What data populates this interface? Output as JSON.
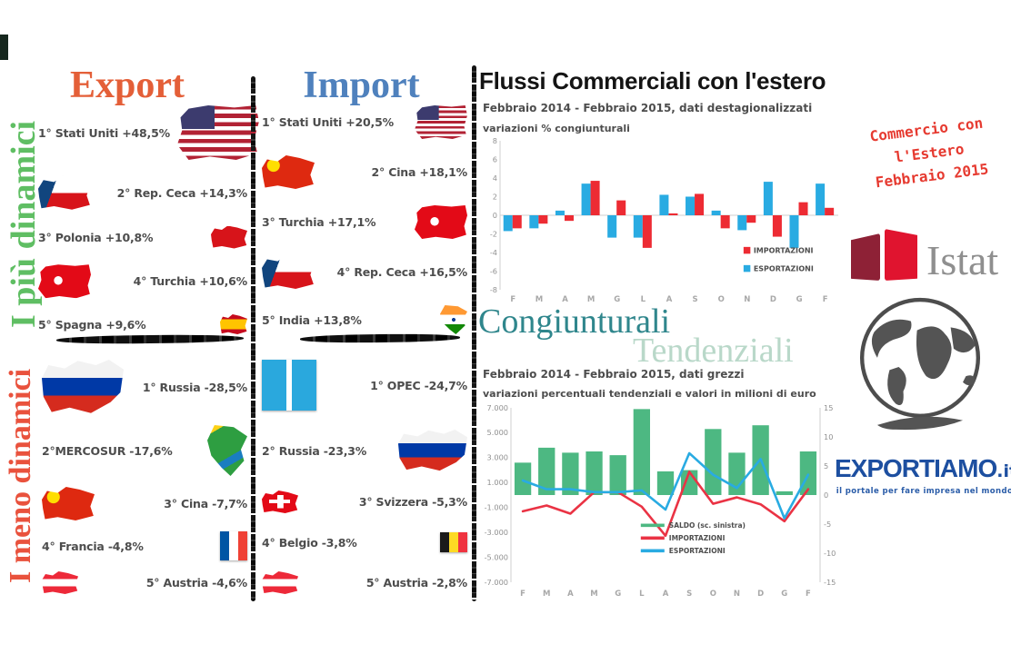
{
  "export_col": {
    "title": "Export",
    "top": {
      "label": "I più dinamici",
      "color": "#5fbe63",
      "items": [
        {
          "label": "1° Stati Uniti +48,5%",
          "flag": "usa"
        },
        {
          "label": "2° Rep. Ceca +14,3%",
          "flag": "czech"
        },
        {
          "label": "3° Polonia +10,8%",
          "flag": "poland"
        },
        {
          "label": "4° Turchia +10,6%",
          "flag": "turkey"
        },
        {
          "label": "5° Spagna +9,6%",
          "flag": "spain"
        }
      ]
    },
    "bottom": {
      "label": "I meno dinamici",
      "color": "#e9523d",
      "items": [
        {
          "label": "1° Russia -28,5%",
          "flag": "russia"
        },
        {
          "label": "2°MERCOSUR -17,6%",
          "flag": "mercosur"
        },
        {
          "label": "3° Cina -7,7%",
          "flag": "china"
        },
        {
          "label": "4° Francia -4,8%",
          "flag": "france"
        },
        {
          "label": "5° Austria -4,6%",
          "flag": "austria"
        }
      ]
    }
  },
  "import_col": {
    "title": "Import",
    "top": {
      "items": [
        {
          "label": "1° Stati Uniti +20,5%",
          "flag": "usa"
        },
        {
          "label": "2° Cina +18,1%",
          "flag": "china"
        },
        {
          "label": "3° Turchia +17,1%",
          "flag": "turkey"
        },
        {
          "label": "4° Rep. Ceca +16,5%",
          "flag": "czech"
        },
        {
          "label": "5° India +13,8%",
          "flag": "india"
        }
      ]
    },
    "bottom": {
      "items": [
        {
          "label": "1° OPEC -24,7%",
          "flag": "opec"
        },
        {
          "label": "2° Russia -23,3%",
          "flag": "russia"
        },
        {
          "label": "3° Svizzera -5,3%",
          "flag": "switzerland"
        },
        {
          "label": "4° Belgio -3,8%",
          "flag": "belgium"
        },
        {
          "label": "5° Austria -2,8%",
          "flag": "austria"
        }
      ]
    }
  },
  "charts": {
    "title": "Flussi Commerciali con l'estero",
    "subtitle1": "Febbraio 2014 - Febbraio 2015, dati destagionalizzati",
    "note1": "variazioni % congiunturali",
    "word_congiunturali": "Congiunturali",
    "word_tendenziali": "Tendenziali",
    "subtitle2": "Febbraio 2014 - Febbraio 2015, dati grezzi",
    "note2": "variazioni percentuali tendenziali e valori in milioni di euro"
  },
  "chart_data": [
    {
      "type": "bar",
      "title": "variazioni % congiunturali",
      "categories": [
        "F",
        "M",
        "A",
        "M",
        "G",
        "L",
        "A",
        "S",
        "O",
        "N",
        "D",
        "G",
        "F"
      ],
      "series": [
        {
          "name": "ESPORTAZIONI",
          "color": "#29abe2",
          "values": [
            -1.7,
            -1.4,
            0.5,
            3.4,
            -2.4,
            -2.4,
            2.2,
            2.0,
            0.5,
            -1.6,
            3.6,
            -3.5,
            3.4
          ]
        },
        {
          "name": "IMPORTAZIONI",
          "color": "#ed2b33",
          "values": [
            -1.4,
            -0.9,
            -0.6,
            3.7,
            1.6,
            -3.5,
            0.2,
            2.3,
            -1.4,
            -0.8,
            -2.3,
            1.4,
            0.8
          ]
        }
      ],
      "legend": [
        {
          "name": "IMPORTAZIONI",
          "color": "#ed2b33"
        },
        {
          "name": "ESPORTAZIONI",
          "color": "#29abe2"
        }
      ],
      "ylim": [
        -8,
        8
      ],
      "ytick_step": 2,
      "grid": false,
      "legend_position": "inside-right"
    },
    {
      "type": "bar+line",
      "title": "variazioni percentuali tendenziali e valori in milioni di euro",
      "categories": [
        "F",
        "M",
        "A",
        "M",
        "G",
        "L",
        "A",
        "S",
        "O",
        "N",
        "D",
        "G",
        "F"
      ],
      "bars": {
        "name": "SALDO (sc. sinistra)",
        "color": "#4db882",
        "axis": "left",
        "values": [
          2600,
          3800,
          3400,
          3500,
          3200,
          6900,
          1900,
          2000,
          5300,
          3400,
          5600,
          300,
          3500
        ]
      },
      "lines": [
        {
          "name": "IMPORTAZIONI",
          "color": "#ea3344",
          "axis": "right",
          "values": [
            -2.8,
            -1.8,
            -3.2,
            0.5,
            0.5,
            -2.0,
            -7.0,
            4.0,
            -1.5,
            -0.4,
            -1.6,
            -4.5,
            1.0
          ]
        },
        {
          "name": "ESPORTAZIONI",
          "color": "#29abe2",
          "axis": "right",
          "values": [
            2.5,
            1.0,
            1.0,
            0.5,
            0.5,
            0.8,
            -2.5,
            7.2,
            3.5,
            1.2,
            6.2,
            -4.0,
            3.5
          ]
        }
      ],
      "legend": [
        {
          "name": "SALDO (sc. sinistra)",
          "color": "#4db882"
        },
        {
          "name": "IMPORTAZIONI",
          "color": "#ea3344"
        },
        {
          "name": "ESPORTAZIONI",
          "color": "#29abe2"
        }
      ],
      "left_ylim": [
        -7000,
        7000
      ],
      "right_ylim": [
        -15,
        15
      ],
      "left_ticks": [
        "7.000",
        "5.000",
        "3.000",
        "1.000",
        "-1.000",
        "-3.000",
        "-5.000",
        "-7.000"
      ],
      "left_tick_values": [
        7000,
        5000,
        3000,
        1000,
        -1000,
        -3000,
        -5000,
        -7000
      ],
      "right_ticks": [
        "15",
        "10",
        "5",
        "0",
        "-5",
        "-10",
        "-15"
      ],
      "right_tick_values": [
        15,
        10,
        5,
        0,
        -5,
        -10,
        -15
      ],
      "grid": false,
      "legend_position": "inside-bottom-right"
    }
  ],
  "sidebar": {
    "stamp_lines": [
      "Commercio con",
      "l'Estero",
      "Febbraio 2015"
    ],
    "stamp_color": "#e63a30",
    "istat_label": "Istat",
    "brand": {
      "name": "EXPORTIAMO",
      "suffix": ".it",
      "tagline": "il portale per fare impresa nel mondo",
      "color": "#1d4fa0"
    }
  }
}
